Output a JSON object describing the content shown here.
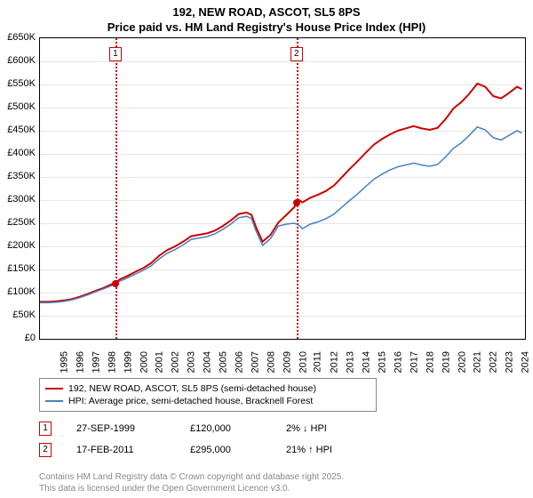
{
  "title_line1": "192, NEW ROAD, ASCOT, SL5 8PS",
  "title_line2": "Price paid vs. HM Land Registry's House Price Index (HPI)",
  "chart": {
    "type": "line",
    "xlim": [
      1995,
      2025.5
    ],
    "ylim": [
      0,
      650000
    ],
    "ytick_step": 50000,
    "yticks": [
      "£0",
      "£50K",
      "£100K",
      "£150K",
      "£200K",
      "£250K",
      "£300K",
      "£350K",
      "£400K",
      "£450K",
      "£500K",
      "£550K",
      "£600K",
      "£650K"
    ],
    "xticks": [
      "1995",
      "1996",
      "1997",
      "1998",
      "1999",
      "2000",
      "2001",
      "2002",
      "2003",
      "2004",
      "2005",
      "2006",
      "2007",
      "2008",
      "2009",
      "2010",
      "2011",
      "2012",
      "2013",
      "2014",
      "2015",
      "2016",
      "2017",
      "2018",
      "2019",
      "2020",
      "2021",
      "2022",
      "2023",
      "2024"
    ],
    "grid_color": "#e6e6e6",
    "background_color": "#ffffff",
    "border_color": "#000000",
    "series": [
      {
        "name": "192, NEW ROAD, ASCOT, SL5 8PS (semi-detached house)",
        "color": "#cc0000",
        "width": 2,
        "points": [
          [
            1995.0,
            80000
          ],
          [
            1995.5,
            80000
          ],
          [
            1996.0,
            81000
          ],
          [
            1996.5,
            83000
          ],
          [
            1997.0,
            86000
          ],
          [
            1997.5,
            91000
          ],
          [
            1998.0,
            97000
          ],
          [
            1998.5,
            104000
          ],
          [
            1999.0,
            110000
          ],
          [
            1999.5,
            118000
          ],
          [
            1999.74,
            120000
          ],
          [
            2000.0,
            128000
          ],
          [
            2000.5,
            136000
          ],
          [
            2001.0,
            145000
          ],
          [
            2001.5,
            153000
          ],
          [
            2002.0,
            164000
          ],
          [
            2002.5,
            180000
          ],
          [
            2003.0,
            192000
          ],
          [
            2003.5,
            200000
          ],
          [
            2004.0,
            210000
          ],
          [
            2004.5,
            222000
          ],
          [
            2005.0,
            225000
          ],
          [
            2005.5,
            228000
          ],
          [
            2006.0,
            234000
          ],
          [
            2006.5,
            244000
          ],
          [
            2007.0,
            256000
          ],
          [
            2007.5,
            270000
          ],
          [
            2008.0,
            273000
          ],
          [
            2008.3,
            268000
          ],
          [
            2008.6,
            240000
          ],
          [
            2009.0,
            210000
          ],
          [
            2009.5,
            225000
          ],
          [
            2010.0,
            252000
          ],
          [
            2010.5,
            268000
          ],
          [
            2011.0,
            285000
          ],
          [
            2011.13,
            295000
          ],
          [
            2011.3,
            300000
          ],
          [
            2011.5,
            295000
          ],
          [
            2012.0,
            305000
          ],
          [
            2012.5,
            312000
          ],
          [
            2013.0,
            320000
          ],
          [
            2013.5,
            332000
          ],
          [
            2014.0,
            350000
          ],
          [
            2014.5,
            368000
          ],
          [
            2015.0,
            385000
          ],
          [
            2015.5,
            403000
          ],
          [
            2016.0,
            420000
          ],
          [
            2016.5,
            432000
          ],
          [
            2017.0,
            442000
          ],
          [
            2017.5,
            450000
          ],
          [
            2018.0,
            455000
          ],
          [
            2018.5,
            460000
          ],
          [
            2019.0,
            455000
          ],
          [
            2019.5,
            452000
          ],
          [
            2020.0,
            456000
          ],
          [
            2020.5,
            475000
          ],
          [
            2021.0,
            498000
          ],
          [
            2021.5,
            512000
          ],
          [
            2022.0,
            530000
          ],
          [
            2022.5,
            552000
          ],
          [
            2023.0,
            545000
          ],
          [
            2023.5,
            525000
          ],
          [
            2024.0,
            520000
          ],
          [
            2024.5,
            532000
          ],
          [
            2025.0,
            545000
          ],
          [
            2025.3,
            540000
          ]
        ]
      },
      {
        "name": "HPI: Average price, semi-detached house, Bracknell Forest",
        "color": "#4a7fc4",
        "width": 1.5,
        "points": [
          [
            1995.0,
            78000
          ],
          [
            1995.5,
            78000
          ],
          [
            1996.0,
            79000
          ],
          [
            1996.5,
            81000
          ],
          [
            1997.0,
            84000
          ],
          [
            1997.5,
            89000
          ],
          [
            1998.0,
            95000
          ],
          [
            1998.5,
            102000
          ],
          [
            1999.0,
            108000
          ],
          [
            1999.5,
            115000
          ],
          [
            2000.0,
            124000
          ],
          [
            2000.5,
            132000
          ],
          [
            2001.0,
            140000
          ],
          [
            2001.5,
            148000
          ],
          [
            2002.0,
            158000
          ],
          [
            2002.5,
            173000
          ],
          [
            2003.0,
            185000
          ],
          [
            2003.5,
            193000
          ],
          [
            2004.0,
            203000
          ],
          [
            2004.5,
            215000
          ],
          [
            2005.0,
            218000
          ],
          [
            2005.5,
            221000
          ],
          [
            2006.0,
            227000
          ],
          [
            2006.5,
            237000
          ],
          [
            2007.0,
            248000
          ],
          [
            2007.5,
            262000
          ],
          [
            2008.0,
            265000
          ],
          [
            2008.3,
            260000
          ],
          [
            2008.6,
            232000
          ],
          [
            2009.0,
            202000
          ],
          [
            2009.5,
            217000
          ],
          [
            2010.0,
            244000
          ],
          [
            2010.5,
            248000
          ],
          [
            2011.0,
            250000
          ],
          [
            2011.3,
            245000
          ],
          [
            2011.5,
            238000
          ],
          [
            2012.0,
            248000
          ],
          [
            2012.5,
            253000
          ],
          [
            2013.0,
            260000
          ],
          [
            2013.5,
            270000
          ],
          [
            2014.0,
            285000
          ],
          [
            2014.5,
            300000
          ],
          [
            2015.0,
            314000
          ],
          [
            2015.5,
            330000
          ],
          [
            2016.0,
            345000
          ],
          [
            2016.5,
            356000
          ],
          [
            2017.0,
            365000
          ],
          [
            2017.5,
            372000
          ],
          [
            2018.0,
            376000
          ],
          [
            2018.5,
            380000
          ],
          [
            2019.0,
            376000
          ],
          [
            2019.5,
            373000
          ],
          [
            2020.0,
            377000
          ],
          [
            2020.5,
            393000
          ],
          [
            2021.0,
            412000
          ],
          [
            2021.5,
            424000
          ],
          [
            2022.0,
            440000
          ],
          [
            2022.5,
            458000
          ],
          [
            2023.0,
            452000
          ],
          [
            2023.5,
            435000
          ],
          [
            2024.0,
            430000
          ],
          [
            2024.5,
            440000
          ],
          [
            2025.0,
            450000
          ],
          [
            2025.3,
            445000
          ]
        ]
      }
    ],
    "markers": [
      {
        "n": "1",
        "x": 1999.74,
        "y": 120000,
        "color": "#cc0000"
      },
      {
        "n": "2",
        "x": 2011.13,
        "y": 295000,
        "color": "#cc0000"
      }
    ]
  },
  "legend": {
    "items": [
      {
        "color": "#cc0000",
        "label": "192, NEW ROAD, ASCOT, SL5 8PS (semi-detached house)"
      },
      {
        "color": "#4a7fc4",
        "label": "HPI: Average price, semi-detached house, Bracknell Forest"
      }
    ]
  },
  "footer": {
    "rows": [
      {
        "n": "1",
        "date": "27-SEP-1999",
        "price": "£120,000",
        "delta": "2% ↓ HPI"
      },
      {
        "n": "2",
        "date": "17-FEB-2011",
        "price": "£295,000",
        "delta": "21% ↑ HPI"
      }
    ]
  },
  "attribution_line1": "Contains HM Land Registry data © Crown copyright and database right 2025.",
  "attribution_line2": "This data is licensed under the Open Government Licence v3.0."
}
